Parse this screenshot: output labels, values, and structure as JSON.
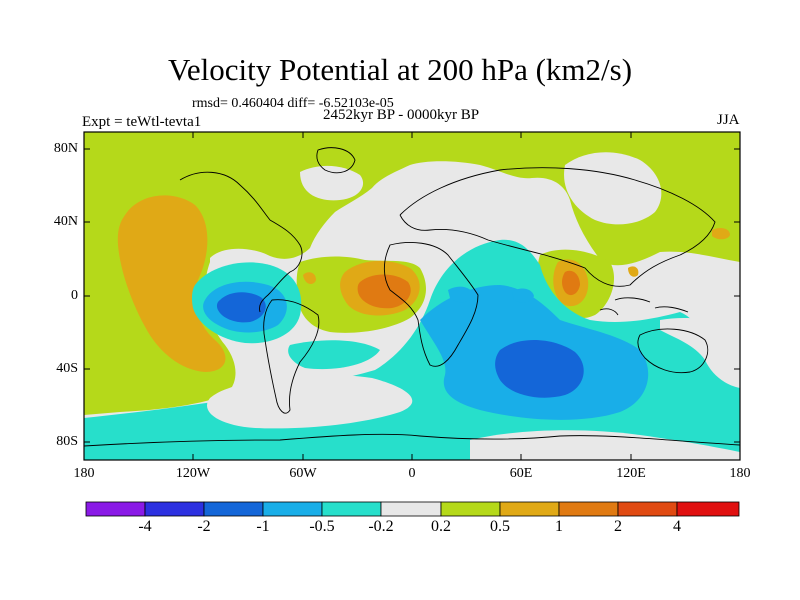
{
  "header": {
    "title": "Velocity Potential at 200 hPa (km2/s)",
    "stats": "rmsd= 0.460404 diff= -6.52103e-05",
    "timespan": "2452kyr BP - 0000kyr BP",
    "experiment": "Expt = teWtl-tevta1",
    "season": "JJA"
  },
  "map": {
    "projection": "cylindrical-equidistant",
    "lon_range": [
      -180,
      180
    ],
    "lat_range": [
      -90,
      90
    ],
    "x_tick_labels": [
      "180",
      "120W",
      "60W",
      "0",
      "60E",
      "120E",
      "180"
    ],
    "y_tick_labels": [
      "80N",
      "40N",
      "0",
      "40S",
      "80S"
    ]
  },
  "colorbar": {
    "level_labels": [
      "-4",
      "-2",
      "-1",
      "-0.5",
      "-0.2",
      "0.2",
      "0.5",
      "1",
      "2",
      "4"
    ],
    "colors": [
      "#8a1ae6",
      "#2c30e0",
      "#1466d8",
      "#19aee8",
      "#27dfcb",
      "#e8e8e8",
      "#b5d91a",
      "#e0a916",
      "#e07a12",
      "#e04a12",
      "#e01010"
    ]
  },
  "palette": {
    "ocean_neutral": "#e8e8e8",
    "positive_weak": "#b5d91a",
    "positive_mid": "#e0a916",
    "positive_strong": "#e07a12",
    "negative_weak": "#27dfcb",
    "negative_mid": "#19aee8",
    "negative_strong": "#1466d8"
  }
}
